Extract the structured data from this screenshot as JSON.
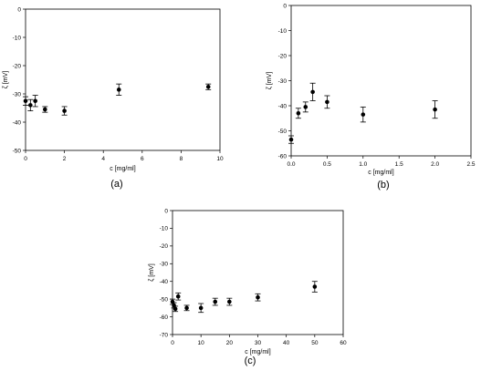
{
  "chart_data": [
    {
      "type": "scatter",
      "panel_label": "(a)",
      "xlabel": "c [mg/ml]",
      "ylabel": "ζ [mV]",
      "xlim": [
        0,
        10
      ],
      "ylim": [
        -50,
        0
      ],
      "xticks": [
        0,
        2,
        4,
        6,
        8,
        10
      ],
      "yticks": [
        0,
        -10,
        -20,
        -30,
        -40,
        -50
      ],
      "grid": false,
      "series": [
        {
          "points": [
            {
              "x": 0.0,
              "y": -32.5,
              "err": 1.5
            },
            {
              "x": 0.25,
              "y": -34.0,
              "err": 2.0
            },
            {
              "x": 0.5,
              "y": -32.5,
              "err": 2.0
            },
            {
              "x": 1.0,
              "y": -35.5,
              "err": 1.0
            },
            {
              "x": 2.0,
              "y": -36.0,
              "err": 1.5
            },
            {
              "x": 4.8,
              "y": -28.5,
              "err": 2.0
            },
            {
              "x": 9.4,
              "y": -27.5,
              "err": 1.0
            }
          ]
        }
      ]
    },
    {
      "type": "scatter",
      "panel_label": "(b)",
      "xlabel": "c [mg/ml]",
      "ylabel": "ζ [mV]",
      "xlim": [
        0,
        2.5
      ],
      "ylim": [
        -60,
        0
      ],
      "xticks": [
        0.0,
        0.5,
        1.0,
        1.5,
        2.0,
        2.5
      ],
      "yticks": [
        0,
        -10,
        -20,
        -30,
        -40,
        -50,
        -60
      ],
      "grid": false,
      "series": [
        {
          "points": [
            {
              "x": 0.0,
              "y": -53.5,
              "err": 1.5
            },
            {
              "x": 0.1,
              "y": -43.0,
              "err": 2.0
            },
            {
              "x": 0.2,
              "y": -40.5,
              "err": 2.0
            },
            {
              "x": 0.3,
              "y": -34.5,
              "err": 3.5
            },
            {
              "x": 0.5,
              "y": -38.5,
              "err": 2.5
            },
            {
              "x": 1.0,
              "y": -43.5,
              "err": 3.0
            },
            {
              "x": 2.0,
              "y": -41.5,
              "err": 3.5
            }
          ]
        }
      ]
    },
    {
      "type": "scatter",
      "panel_label": "(c)",
      "xlabel": "c [mg/ml]",
      "ylabel": "ζ [mV]",
      "xlim": [
        0,
        60
      ],
      "ylim": [
        -70,
        0
      ],
      "xticks": [
        0,
        10,
        20,
        30,
        40,
        50,
        60
      ],
      "yticks": [
        0,
        -10,
        -20,
        -30,
        -40,
        -50,
        -60,
        -70
      ],
      "grid": false,
      "series": [
        {
          "points": [
            {
              "x": 0.0,
              "y": -51.5,
              "err": 1.5
            },
            {
              "x": 0.5,
              "y": -53.5,
              "err": 1.5
            },
            {
              "x": 1.0,
              "y": -55.5,
              "err": 1.5
            },
            {
              "x": 2.0,
              "y": -48.5,
              "err": 2.0
            },
            {
              "x": 5.0,
              "y": -55.0,
              "err": 1.5
            },
            {
              "x": 10.0,
              "y": -55.0,
              "err": 2.5
            },
            {
              "x": 15.0,
              "y": -51.5,
              "err": 2.0
            },
            {
              "x": 20.0,
              "y": -51.5,
              "err": 2.0
            },
            {
              "x": 30.0,
              "y": -49.0,
              "err": 2.0
            },
            {
              "x": 50.0,
              "y": -43.0,
              "err": 3.0
            }
          ]
        }
      ]
    }
  ]
}
